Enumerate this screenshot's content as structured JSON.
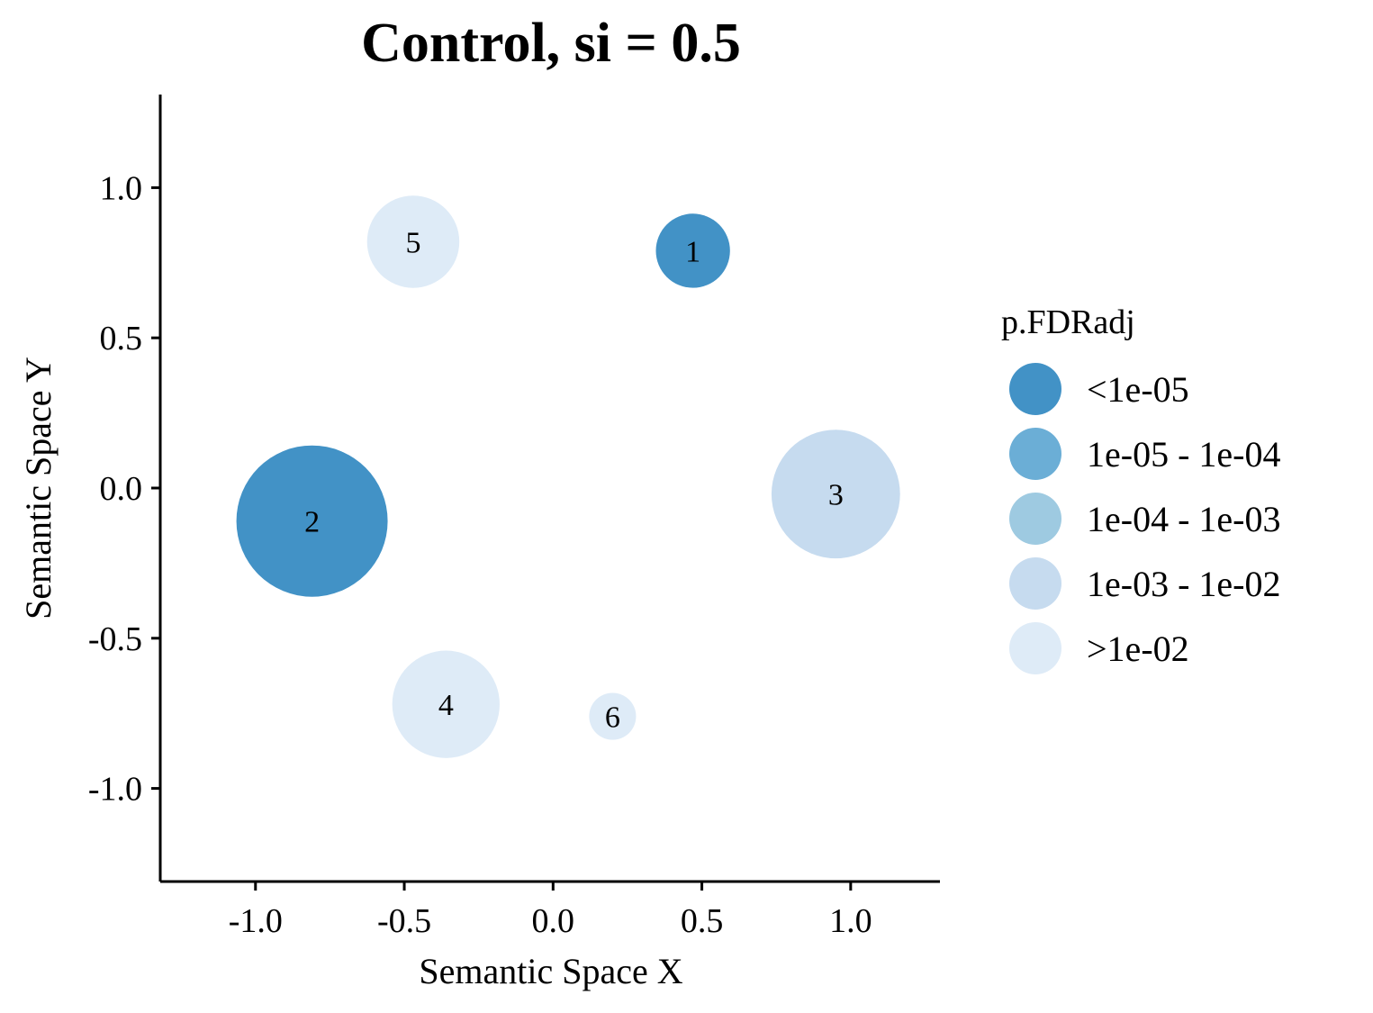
{
  "chart_data": {
    "type": "scatter",
    "title": "Control, si = 0.5",
    "xlabel": "Semantic Space X",
    "ylabel": "Semantic Space Y",
    "xlim": [
      -1.32,
      1.3
    ],
    "ylim": [
      -1.31,
      1.31
    ],
    "xticks": [
      -1.0,
      -0.5,
      0.0,
      0.5,
      1.0
    ],
    "yticks": [
      -1.0,
      -0.5,
      0.0,
      0.5,
      1.0
    ],
    "xtick_labels": [
      "-1.0",
      "-0.5",
      "0.0",
      "0.5",
      "1.0"
    ],
    "ytick_labels": [
      "-1.0",
      "-0.5",
      "0.0",
      "0.5",
      "1.0"
    ],
    "grid": false,
    "legend": {
      "title": "p.FDRadj",
      "placement": "right",
      "entries": [
        {
          "label": "<1e-05",
          "color": "#4292c6"
        },
        {
          "label": "1e-05 - 1e-04",
          "color": "#6baed6"
        },
        {
          "label": "1e-04 - 1e-03",
          "color": "#9ecae1"
        },
        {
          "label": "1e-03 - 1e-02",
          "color": "#c6dbef"
        },
        {
          "label": ">1e-02",
          "color": "#deebf7"
        }
      ]
    },
    "points": [
      {
        "label": "1",
        "x": 0.47,
        "y": 0.79,
        "size_relative": 0.49,
        "category": "<1e-05"
      },
      {
        "label": "2",
        "x": -0.81,
        "y": -0.11,
        "size_relative": 1.0,
        "category": "<1e-05"
      },
      {
        "label": "3",
        "x": 0.95,
        "y": -0.02,
        "size_relative": 0.85,
        "category": "1e-03 - 1e-02"
      },
      {
        "label": "4",
        "x": -0.36,
        "y": -0.72,
        "size_relative": 0.71,
        "category": ">1e-02"
      },
      {
        "label": "5",
        "x": -0.47,
        "y": 0.82,
        "size_relative": 0.61,
        "category": ">1e-02"
      },
      {
        "label": "6",
        "x": 0.2,
        "y": -0.76,
        "size_relative": 0.31,
        "category": ">1e-02"
      }
    ]
  }
}
